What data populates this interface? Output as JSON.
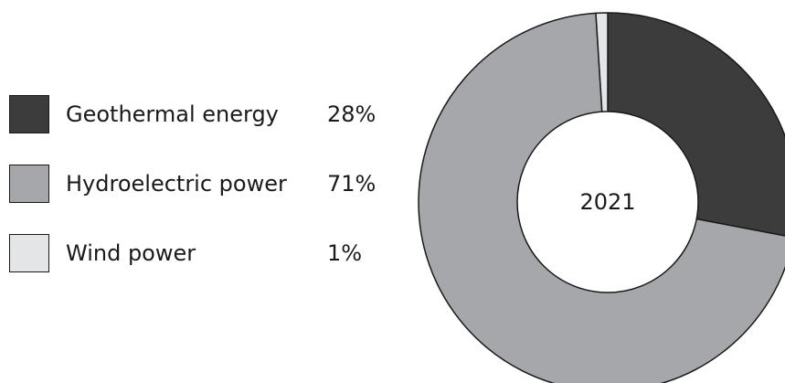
{
  "chart_data": {
    "type": "pie",
    "center_label": "2021",
    "series": [
      {
        "name": "Geothermal energy",
        "value": 28,
        "label": "28%",
        "color": "#3c3c3c"
      },
      {
        "name": "Hydroelectric power",
        "value": 71,
        "label": "71%",
        "color": "#a6a7ab"
      },
      {
        "name": "Wind power",
        "value": 1,
        "label": "1%",
        "color": "#e4e5e7"
      }
    ],
    "legend_placement": "left"
  }
}
